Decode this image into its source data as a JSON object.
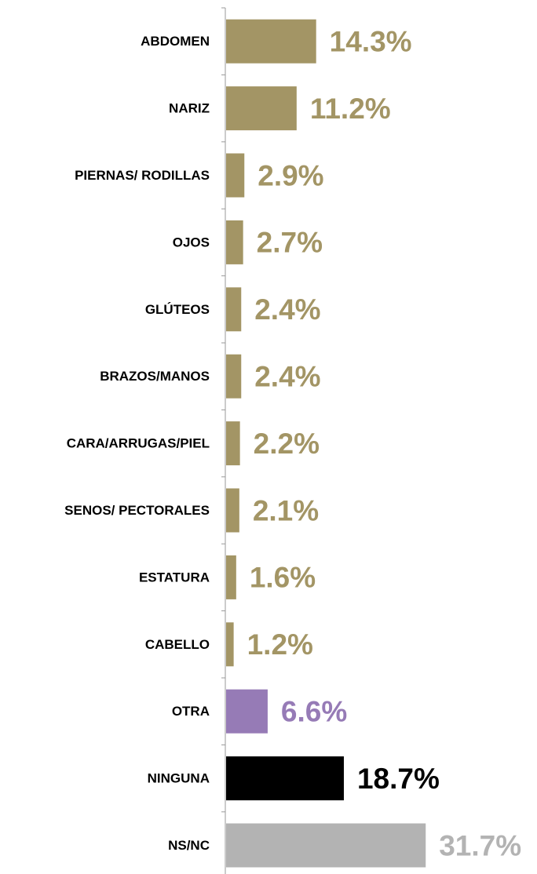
{
  "chart_data": {
    "type": "bar",
    "orientation": "horizontal",
    "categories": [
      "ABDOMEN",
      "NARIZ",
      "PIERNAS/ RODILLAS",
      "OJOS",
      "GLÚTEOS",
      "BRAZOS/MANOS",
      "CARA/ARRUGAS/PIEL",
      "SENOS/ PECTORALES",
      "ESTATURA",
      "CABELLO",
      "OTRA",
      "NINGUNA",
      "NS/NC"
    ],
    "values": [
      14.3,
      11.2,
      2.9,
      2.7,
      2.4,
      2.4,
      2.2,
      2.1,
      1.6,
      1.2,
      6.6,
      18.7,
      31.7
    ],
    "value_labels": [
      "14.3%",
      "11.2%",
      "2.9%",
      "2.7%",
      "2.4%",
      "2.4%",
      "2.2%",
      "2.1%",
      "1.6%",
      "1.2%",
      "6.6%",
      "18.7%",
      "31.7%"
    ],
    "colors": [
      "#a39565",
      "#a39565",
      "#a39565",
      "#a39565",
      "#a39565",
      "#a39565",
      "#a39565",
      "#a39565",
      "#a39565",
      "#a39565",
      "#967bb6",
      "#000000",
      "#b3b3b3"
    ]
  }
}
